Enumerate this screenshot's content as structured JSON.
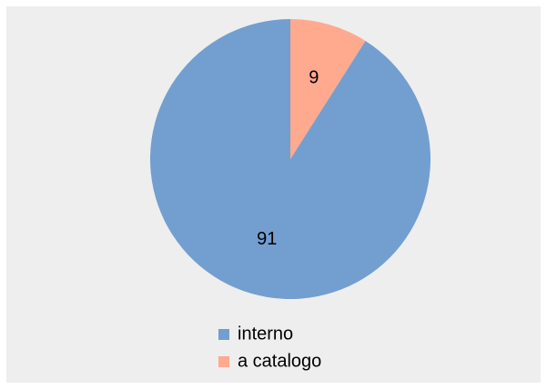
{
  "chart_data": {
    "type": "pie",
    "categories": [
      "interno",
      "a catalogo"
    ],
    "values": [
      91,
      9
    ],
    "colors": [
      "#729fcf",
      "#ffa98f"
    ],
    "legend": "bottom"
  }
}
